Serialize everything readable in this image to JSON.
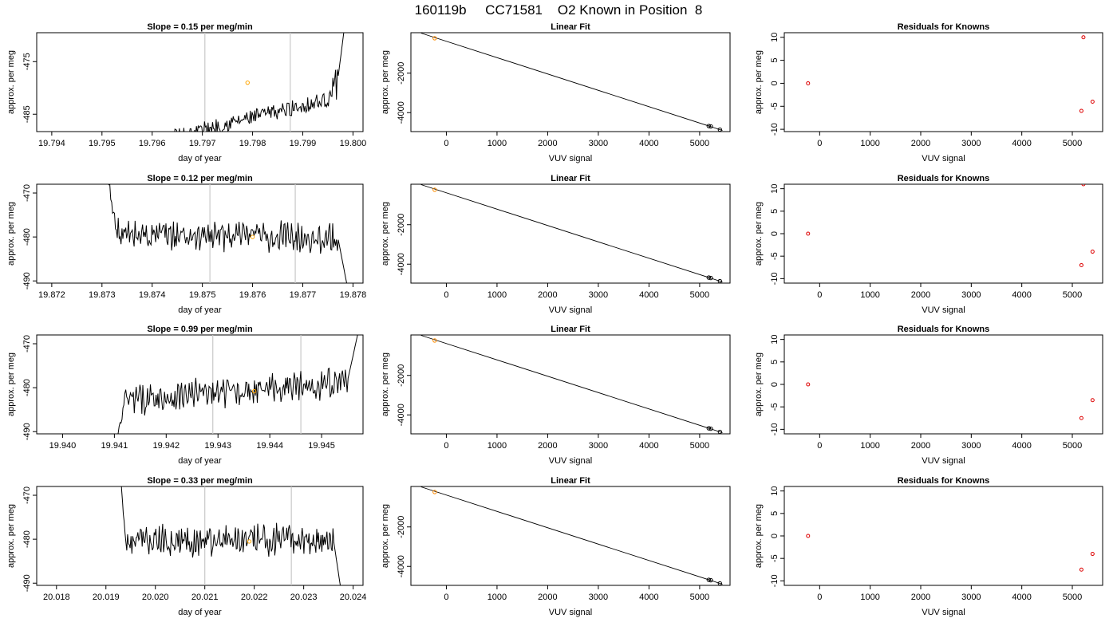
{
  "figure": {
    "title": "160119b     CC71581    O2 Known in Position  8"
  },
  "chart_data": [
    {
      "type": "line",
      "panel": "time-series",
      "row": 1,
      "title": "Slope =  0.15  per meg/min",
      "xlabel": "day of year",
      "ylabel": "approx. per meg",
      "xlim": [
        19.7937,
        19.8002
      ],
      "ylim": [
        -488.3,
        -469.5
      ],
      "xticks": [
        "19.794",
        "19.795",
        "19.796",
        "19.797",
        "19.798",
        "19.799",
        "19.800"
      ],
      "yticks": [
        "-475",
        "-485"
      ],
      "vlines": [
        19.79705,
        19.79875
      ],
      "highlight_point": {
        "x": 19.7979,
        "y": -479.0
      },
      "trace": {
        "x_start": 19.7952,
        "x_end": 19.7997,
        "baseline_start": -482.2,
        "baseline_end": -478.2,
        "rise_start": -492.0,
        "rise_end": -467.0,
        "rise_x": 19.7995,
        "end_x": 19.79985
      }
    },
    {
      "type": "scatter",
      "panel": "linear-fit",
      "row": 1,
      "title": "Linear Fit",
      "xlabel": "VUV signal",
      "ylabel": "approx. per meg",
      "xlim": [
        -700,
        5600
      ],
      "ylim": [
        -4960,
        50
      ],
      "xticks": [
        "0",
        "1000",
        "2000",
        "3000",
        "4000",
        "5000"
      ],
      "yticks": [
        "-2000",
        "-4000"
      ],
      "points": [
        {
          "x": -230,
          "y": -230,
          "color": "#ff8c00"
        },
        {
          "x": 5180,
          "y": -4680
        },
        {
          "x": 5220,
          "y": -4700
        },
        {
          "x": 5400,
          "y": -4860
        }
      ],
      "fit_line": [
        [
          -500,
          30
        ],
        [
          5450,
          -4900
        ]
      ]
    },
    {
      "type": "scatter",
      "panel": "residuals",
      "row": 1,
      "title": "Residuals for Knowns",
      "xlabel": "VUV signal",
      "ylabel": "approx. per meg",
      "xlim": [
        -700,
        5600
      ],
      "ylim": [
        -10.5,
        11.0
      ],
      "xticks": [
        "0",
        "1000",
        "2000",
        "3000",
        "4000",
        "5000"
      ],
      "yticks": [
        "10",
        "5",
        "0",
        "-5",
        "-10"
      ],
      "points": [
        {
          "x": -230,
          "y": 0
        },
        {
          "x": 5220,
          "y": 10
        },
        {
          "x": 5180,
          "y": -6
        },
        {
          "x": 5400,
          "y": -4
        }
      ]
    },
    {
      "type": "line",
      "panel": "time-series",
      "row": 2,
      "title": "Slope =  0.12  per meg/min",
      "xlabel": "day of year",
      "ylabel": "approx. per meg",
      "xlim": [
        19.8717,
        19.8782
      ],
      "ylim": [
        -490.5,
        -468.0
      ],
      "xticks": [
        "19.872",
        "19.873",
        "19.874",
        "19.875",
        "19.876",
        "19.877",
        "19.878"
      ],
      "yticks": [
        "-470",
        "-480",
        "-490"
      ],
      "vlines": [
        19.87515,
        19.87685
      ],
      "highlight_point": {
        "x": 19.876,
        "y": -480.0
      },
      "trace": {
        "x_start": 19.8731,
        "x_end": 19.8777,
        "baseline_start": -479.5,
        "baseline_end": -480.2,
        "rise_start": -465.0,
        "rise_end": -495.0,
        "rise_x": 19.8733,
        "end_x": 19.87795
      }
    },
    {
      "type": "scatter",
      "panel": "linear-fit",
      "row": 2,
      "title": "Linear Fit",
      "xlabel": "VUV signal",
      "ylabel": "approx. per meg",
      "xlim": [
        -700,
        5600
      ],
      "ylim": [
        -4960,
        50
      ],
      "xticks": [
        "0",
        "1000",
        "2000",
        "3000",
        "4000",
        "5000"
      ],
      "yticks": [
        "-2000",
        "-4000"
      ],
      "points": [
        {
          "x": -230,
          "y": -230,
          "color": "#ff8c00"
        },
        {
          "x": 5180,
          "y": -4680
        },
        {
          "x": 5220,
          "y": -4700
        },
        {
          "x": 5400,
          "y": -4860
        }
      ],
      "fit_line": [
        [
          -500,
          30
        ],
        [
          5450,
          -4900
        ]
      ]
    },
    {
      "type": "scatter",
      "panel": "residuals",
      "row": 2,
      "title": "Residuals for Knowns",
      "xlabel": "VUV signal",
      "ylabel": "approx. per meg",
      "xlim": [
        -700,
        5600
      ],
      "ylim": [
        -11.0,
        11.0
      ],
      "xticks": [
        "0",
        "1000",
        "2000",
        "3000",
        "4000",
        "5000"
      ],
      "yticks": [
        "10",
        "5",
        "0",
        "-5",
        "-10"
      ],
      "points": [
        {
          "x": -230,
          "y": 0
        },
        {
          "x": 5220,
          "y": 11
        },
        {
          "x": 5180,
          "y": -7
        },
        {
          "x": 5400,
          "y": -4
        }
      ]
    },
    {
      "type": "line",
      "panel": "time-series",
      "row": 3,
      "title": "Slope =  0.99  per meg/min",
      "xlabel": "day of year",
      "ylabel": "approx. per meg",
      "xlim": [
        19.9395,
        19.9458
      ],
      "ylim": [
        -490.5,
        -468.0
      ],
      "xticks": [
        "19.940",
        "19.941",
        "19.942",
        "19.943",
        "19.944",
        "19.945"
      ],
      "yticks": [
        "-470",
        "-480",
        "-490"
      ],
      "vlines": [
        19.9429,
        19.9446
      ],
      "highlight_point": {
        "x": 19.9437,
        "y": -480.8
      },
      "trace": {
        "x_start": 19.941,
        "x_end": 19.9455,
        "baseline_start": -483.0,
        "baseline_end": -478.5,
        "rise_start": -496.0,
        "rise_end": -465.0,
        "rise_x": 19.9412,
        "end_x": 19.94575
      }
    },
    {
      "type": "scatter",
      "panel": "linear-fit",
      "row": 3,
      "title": "Linear Fit",
      "xlabel": "VUV signal",
      "ylabel": "approx. per meg",
      "xlim": [
        -700,
        5600
      ],
      "ylim": [
        -4960,
        50
      ],
      "xticks": [
        "0",
        "1000",
        "2000",
        "3000",
        "4000",
        "5000"
      ],
      "yticks": [
        "-2000",
        "-4000"
      ],
      "points": [
        {
          "x": -230,
          "y": -230,
          "color": "#ff8c00"
        },
        {
          "x": 5180,
          "y": -4680
        },
        {
          "x": 5220,
          "y": -4700
        },
        {
          "x": 5400,
          "y": -4860
        }
      ],
      "fit_line": [
        [
          -500,
          30
        ],
        [
          5450,
          -4900
        ]
      ]
    },
    {
      "type": "scatter",
      "panel": "residuals",
      "row": 3,
      "title": "Residuals for Knowns",
      "xlabel": "VUV signal",
      "ylabel": "approx. per meg",
      "xlim": [
        -700,
        5600
      ],
      "ylim": [
        -11.0,
        11.0
      ],
      "xticks": [
        "0",
        "1000",
        "2000",
        "3000",
        "4000",
        "5000"
      ],
      "yticks": [
        "10",
        "5",
        "0",
        "-5",
        "-10"
      ],
      "points": [
        {
          "x": -230,
          "y": 0
        },
        {
          "x": 5180,
          "y": -7.5
        },
        {
          "x": 5400,
          "y": -3.5
        }
      ]
    },
    {
      "type": "line",
      "panel": "time-series",
      "row": 4,
      "title": "Slope =  0.33  per meg/min",
      "xlabel": "day of year",
      "ylabel": "approx. per meg",
      "xlim": [
        20.0176,
        20.0242
      ],
      "ylim": [
        -490.5,
        -468.0
      ],
      "xticks": [
        "20.018",
        "20.019",
        "20.020",
        "20.021",
        "20.022",
        "20.023",
        "20.024"
      ],
      "yticks": [
        "-470",
        "-480",
        "-490"
      ],
      "vlines": [
        20.021,
        20.02275
      ],
      "highlight_point": {
        "x": 20.0219,
        "y": -480.5
      },
      "trace": {
        "x_start": 20.0193,
        "x_end": 20.0236,
        "baseline_start": -480.5,
        "baseline_end": -480.0,
        "rise_start": -465.0,
        "rise_end": -495.0,
        "rise_x": 20.0194,
        "end_x": 20.0238
      }
    },
    {
      "type": "scatter",
      "panel": "linear-fit",
      "row": 4,
      "title": "Linear Fit",
      "xlabel": "VUV signal",
      "ylabel": "approx. per meg",
      "xlim": [
        -700,
        5600
      ],
      "ylim": [
        -4960,
        50
      ],
      "xticks": [
        "0",
        "1000",
        "2000",
        "3000",
        "4000",
        "5000"
      ],
      "yticks": [
        "-2000",
        "-4000"
      ],
      "points": [
        {
          "x": -230,
          "y": -230,
          "color": "#ff8c00"
        },
        {
          "x": 5180,
          "y": -4680
        },
        {
          "x": 5220,
          "y": -4700
        },
        {
          "x": 5400,
          "y": -4860
        }
      ],
      "fit_line": [
        [
          -500,
          30
        ],
        [
          5450,
          -4900
        ]
      ]
    },
    {
      "type": "scatter",
      "panel": "residuals",
      "row": 4,
      "title": "Residuals for Knowns",
      "xlabel": "VUV signal",
      "ylabel": "approx. per meg",
      "xlim": [
        -700,
        5600
      ],
      "ylim": [
        -11.0,
        11.0
      ],
      "xticks": [
        "0",
        "1000",
        "2000",
        "3000",
        "4000",
        "5000"
      ],
      "yticks": [
        "10",
        "5",
        "0",
        "-5",
        "-10"
      ],
      "points": [
        {
          "x": -230,
          "y": 0
        },
        {
          "x": 5180,
          "y": -7.5
        },
        {
          "x": 5400,
          "y": -4
        }
      ]
    }
  ],
  "colors": {
    "trace": "#000000",
    "vline": "#c8c8c8",
    "highlight": "#ffa500",
    "fit_point": "#000000",
    "residual_point": "#dd0000",
    "axes": "#000000"
  }
}
